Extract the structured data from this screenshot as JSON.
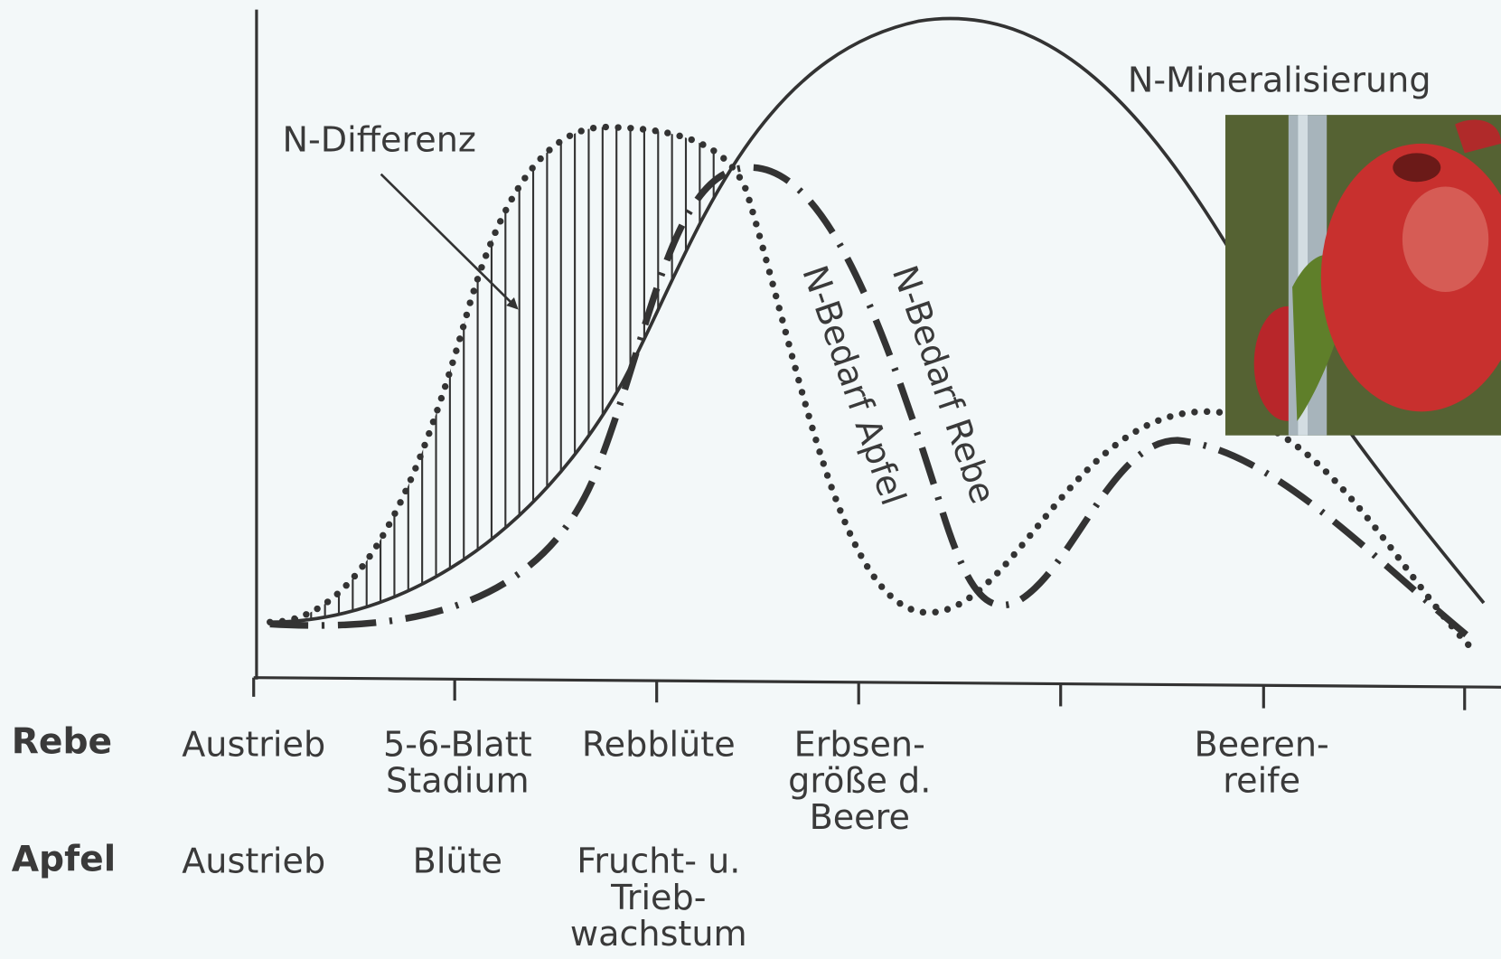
{
  "curves": {
    "mineralisierung": "N-Mineralisierung",
    "differenz": "N-Differenz",
    "bedarf_rebe": "N-Bedarf Rebe",
    "bedarf_apfel": "N-Bedarf Apfel"
  },
  "rows": [
    {
      "label": "Rebe",
      "stages": [
        [
          "Austrieb"
        ],
        [
          "5-6-Blatt",
          "Stadium"
        ],
        [
          "Rebblüte"
        ],
        [
          "Erbsen-",
          "größe d.",
          "Beere"
        ],
        [
          "Beeren-",
          "reife"
        ]
      ]
    },
    {
      "label": "Apfel",
      "stages": [
        [
          "Austrieb"
        ],
        [
          "Blüte"
        ],
        [
          "Frucht- u.",
          "Trieb-",
          "wachstum"
        ]
      ]
    }
  ]
}
